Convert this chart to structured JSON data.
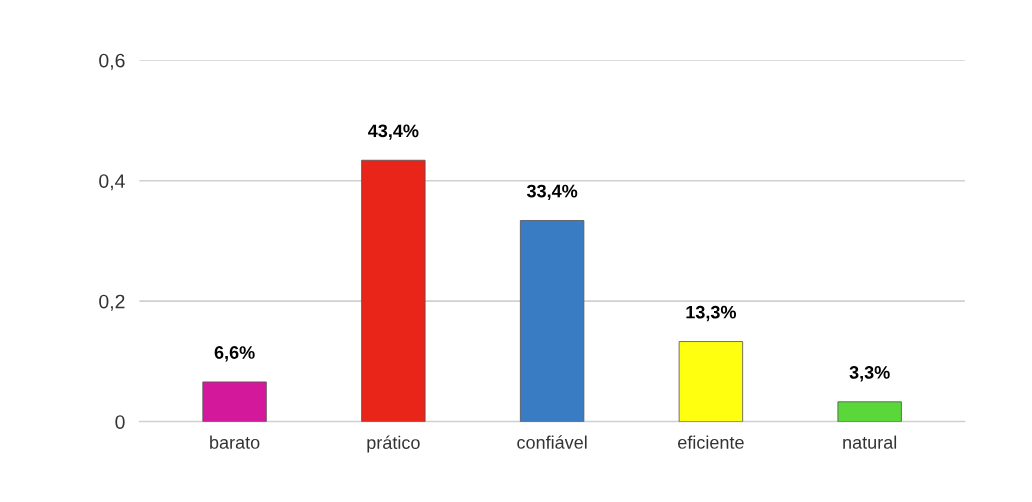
{
  "chart_data": {
    "type": "bar",
    "categories": [
      "barato",
      "prático",
      "confiável",
      "eficiente",
      "natural"
    ],
    "values": [
      0.066,
      0.434,
      0.334,
      0.133,
      0.033
    ],
    "value_labels": [
      "6,6%",
      "43,4%",
      "33,4%",
      "13,3%",
      "3,3%"
    ],
    "colors": [
      "#d4189c",
      "#e82518",
      "#3a7cc4",
      "#ffff10",
      "#5ad83a"
    ],
    "ylim": [
      0,
      0.6
    ],
    "yticks": [
      0,
      {
        "value": 0.2,
        "label": "0,2"
      },
      {
        "value": 0.4,
        "label": "0,4"
      },
      {
        "value": 0.6,
        "label": "0,6"
      }
    ],
    "grid": "y"
  }
}
